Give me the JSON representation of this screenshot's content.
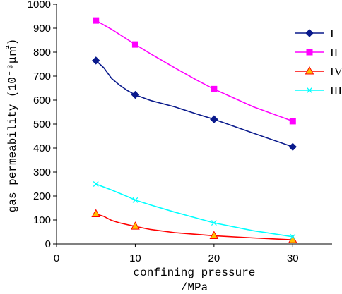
{
  "chart_data": {
    "type": "line",
    "xlabel_line1": "confining pressure",
    "xlabel_line2": "/MPa",
    "ylabel": "gas permeability (10⁻³μ㎡)",
    "xlim": [
      0,
      35
    ],
    "ylim": [
      0,
      1000
    ],
    "x_ticks": [
      "0",
      "10",
      "20",
      "30"
    ],
    "y_ticks": [
      "0",
      "100",
      "200",
      "300",
      "400",
      "500",
      "600",
      "700",
      "800",
      "900",
      "1000"
    ],
    "grid": false,
    "legend_position": "top-right",
    "series": [
      {
        "name": "I",
        "color": "#0a1a8c",
        "marker": "diamond",
        "x": [
          5,
          10,
          20,
          30
        ],
        "y": [
          765,
          622,
          520,
          405
        ],
        "curve_x": [
          5,
          6,
          7,
          8,
          9,
          10,
          12,
          15,
          18,
          20,
          25,
          30
        ],
        "curve_y": [
          765,
          735,
          690,
          663,
          640,
          622,
          598,
          572,
          540,
          520,
          462,
          405
        ]
      },
      {
        "name": "II",
        "color": "#ff00ff",
        "marker": "square",
        "x": [
          5,
          10,
          20,
          30
        ],
        "y": [
          932,
          832,
          646,
          512
        ],
        "curve_x": [
          5,
          7,
          9,
          10,
          12,
          15,
          18,
          20,
          25,
          30
        ],
        "curve_y": [
          932,
          895,
          853,
          832,
          792,
          735,
          680,
          646,
          572,
          512
        ]
      },
      {
        "name": "IV",
        "color": "#ff0000",
        "marker": "triangle",
        "marker_fill": "#ffc000",
        "x": [
          5,
          10,
          20,
          30
        ],
        "y": [
          125,
          73,
          34,
          17
        ],
        "curve_x": [
          5,
          6,
          7,
          8,
          10,
          12,
          15,
          20,
          25,
          30
        ],
        "curve_y": [
          125,
          115,
          98,
          88,
          73,
          60,
          47,
          34,
          25,
          17
        ]
      },
      {
        "name": "III",
        "color": "#00ffff",
        "marker": "x",
        "x": [
          5,
          10,
          20,
          30
        ],
        "y": [
          250,
          183,
          88,
          30
        ],
        "curve_x": [
          5,
          7,
          9,
          10,
          12,
          15,
          20,
          25,
          30
        ],
        "curve_y": [
          250,
          225,
          198,
          183,
          162,
          133,
          88,
          55,
          30
        ]
      }
    ]
  }
}
